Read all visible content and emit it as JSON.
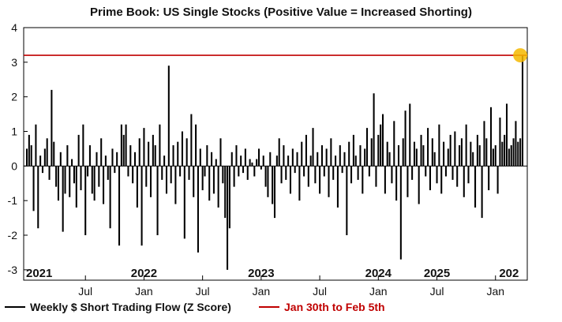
{
  "chart_data": {
    "type": "bar",
    "title": "Prime Book: US Single Stocks (Positive Value = Increased Shorting)",
    "xlabel": "",
    "ylabel": "",
    "ylim": [
      -3.3,
      4
    ],
    "yticks": [
      4,
      3,
      2,
      1,
      0,
      -1,
      -2,
      -3
    ],
    "x_range_weeks": [
      0,
      220
    ],
    "x_tick_labels": [
      {
        "label": "Jul",
        "week": 26
      },
      {
        "label": "Jan",
        "week": 52
      },
      {
        "label": "Jul",
        "week": 78
      },
      {
        "label": "Jan",
        "week": 104
      },
      {
        "label": "Jul",
        "week": 130
      },
      {
        "label": "Jan",
        "week": 156
      },
      {
        "label": "Jul",
        "week": 182
      },
      {
        "label": "Jan",
        "week": 208
      }
    ],
    "year_labels": [
      {
        "label": "2021",
        "week": 4
      },
      {
        "label": "2022",
        "week": 52
      },
      {
        "label": "2023",
        "week": 104
      },
      {
        "label": "2024",
        "week": 156
      },
      {
        "label": "2025",
        "week": 182
      },
      {
        "label": "202",
        "week": 214
      }
    ],
    "reference_line": {
      "name": "Jan 30th to Feb 5th",
      "value": 3.2,
      "color": "#c00000"
    },
    "highlight_point": {
      "week": 219,
      "value": 3.2,
      "color": "#f5b800"
    },
    "series": [
      {
        "name": "Weekly $ Short Trading Flow (Z Score)",
        "color": "#000000",
        "values": [
          0.5,
          0.9,
          0.6,
          -1.3,
          1.2,
          -1.8,
          0.3,
          -0.2,
          0.5,
          0.8,
          -0.4,
          2.2,
          0.7,
          -0.6,
          -1.0,
          0.4,
          -1.9,
          -0.8,
          0.6,
          -0.9,
          0.2,
          -0.5,
          -1.2,
          0.9,
          -0.7,
          1.2,
          -2.0,
          -0.3,
          0.6,
          -0.8,
          -1.0,
          0.4,
          -0.6,
          0.8,
          -1.1,
          0.3,
          -0.4,
          -1.8,
          0.5,
          -0.2,
          0.4,
          -2.3,
          1.2,
          0.9,
          1.2,
          -0.3,
          0.6,
          -0.5,
          0.4,
          -1.2,
          0.8,
          -2.3,
          1.1,
          -0.6,
          0.7,
          -0.9,
          0.9,
          0.6,
          -2.0,
          1.2,
          -0.4,
          0.3,
          -0.8,
          2.9,
          -0.5,
          0.6,
          -1.1,
          0.7,
          -0.3,
          1.0,
          -2.1,
          0.8,
          -0.4,
          1.5,
          -0.9,
          1.2,
          -2.5,
          0.5,
          -0.7,
          -0.3,
          0.6,
          -1.0,
          0.4,
          -0.8,
          0.2,
          -1.2,
          0.8,
          -0.5,
          -1.5,
          -3.0,
          -1.8,
          0.4,
          -0.6,
          0.6,
          -0.3,
          0.3,
          -0.2,
          0.5,
          -0.4,
          0.2,
          0.1,
          -0.3,
          0.2,
          0.5,
          -0.1,
          0.3,
          -0.6,
          -0.9,
          0.4,
          -1.1,
          -1.5,
          0.3,
          0.8,
          -0.5,
          0.6,
          -0.4,
          0.3,
          -0.8,
          0.5,
          -0.2,
          0.4,
          -1.0,
          0.7,
          -0.3,
          0.9,
          -0.6,
          0.3,
          1.1,
          -0.5,
          0.4,
          -0.8,
          0.6,
          -0.3,
          0.5,
          -0.9,
          0.8,
          -0.4,
          0.3,
          -1.2,
          0.6,
          -0.2,
          0.4,
          -2.0,
          0.7,
          -0.5,
          0.9,
          0.3,
          -0.4,
          0.6,
          -0.8,
          0.5,
          1.1,
          -0.3,
          0.8,
          2.1,
          -0.6,
          0.9,
          1.2,
          1.5,
          -0.8,
          0.7,
          0.4,
          -0.5,
          1.3,
          -1.0,
          0.6,
          -2.7,
          0.8,
          1.6,
          -0.9,
          1.8,
          -0.4,
          0.7,
          0.5,
          -1.1,
          0.9,
          0.6,
          -0.3,
          1.1,
          -0.7,
          0.8,
          0.4,
          -0.5,
          1.2,
          -0.8,
          0.7,
          -0.3,
          0.5,
          0.9,
          -0.4,
          1.0,
          -0.6,
          0.6,
          0.8,
          -0.9,
          1.2,
          -0.5,
          0.7,
          0.4,
          -1.2,
          0.9,
          0.6,
          -1.5,
          1.3,
          0.8,
          -0.7,
          1.7,
          0.5,
          0.6,
          -0.8,
          1.4,
          0.7,
          0.9,
          1.8,
          0.5,
          0.6,
          0.8,
          1.3,
          0.7,
          0.8,
          3.2
        ]
      }
    ],
    "legend": [
      {
        "label": "Weekly $ Short Trading Flow (Z Score)",
        "color": "#000000"
      },
      {
        "label": "Jan 30th to Feb 5th",
        "color": "#c00000"
      }
    ]
  }
}
